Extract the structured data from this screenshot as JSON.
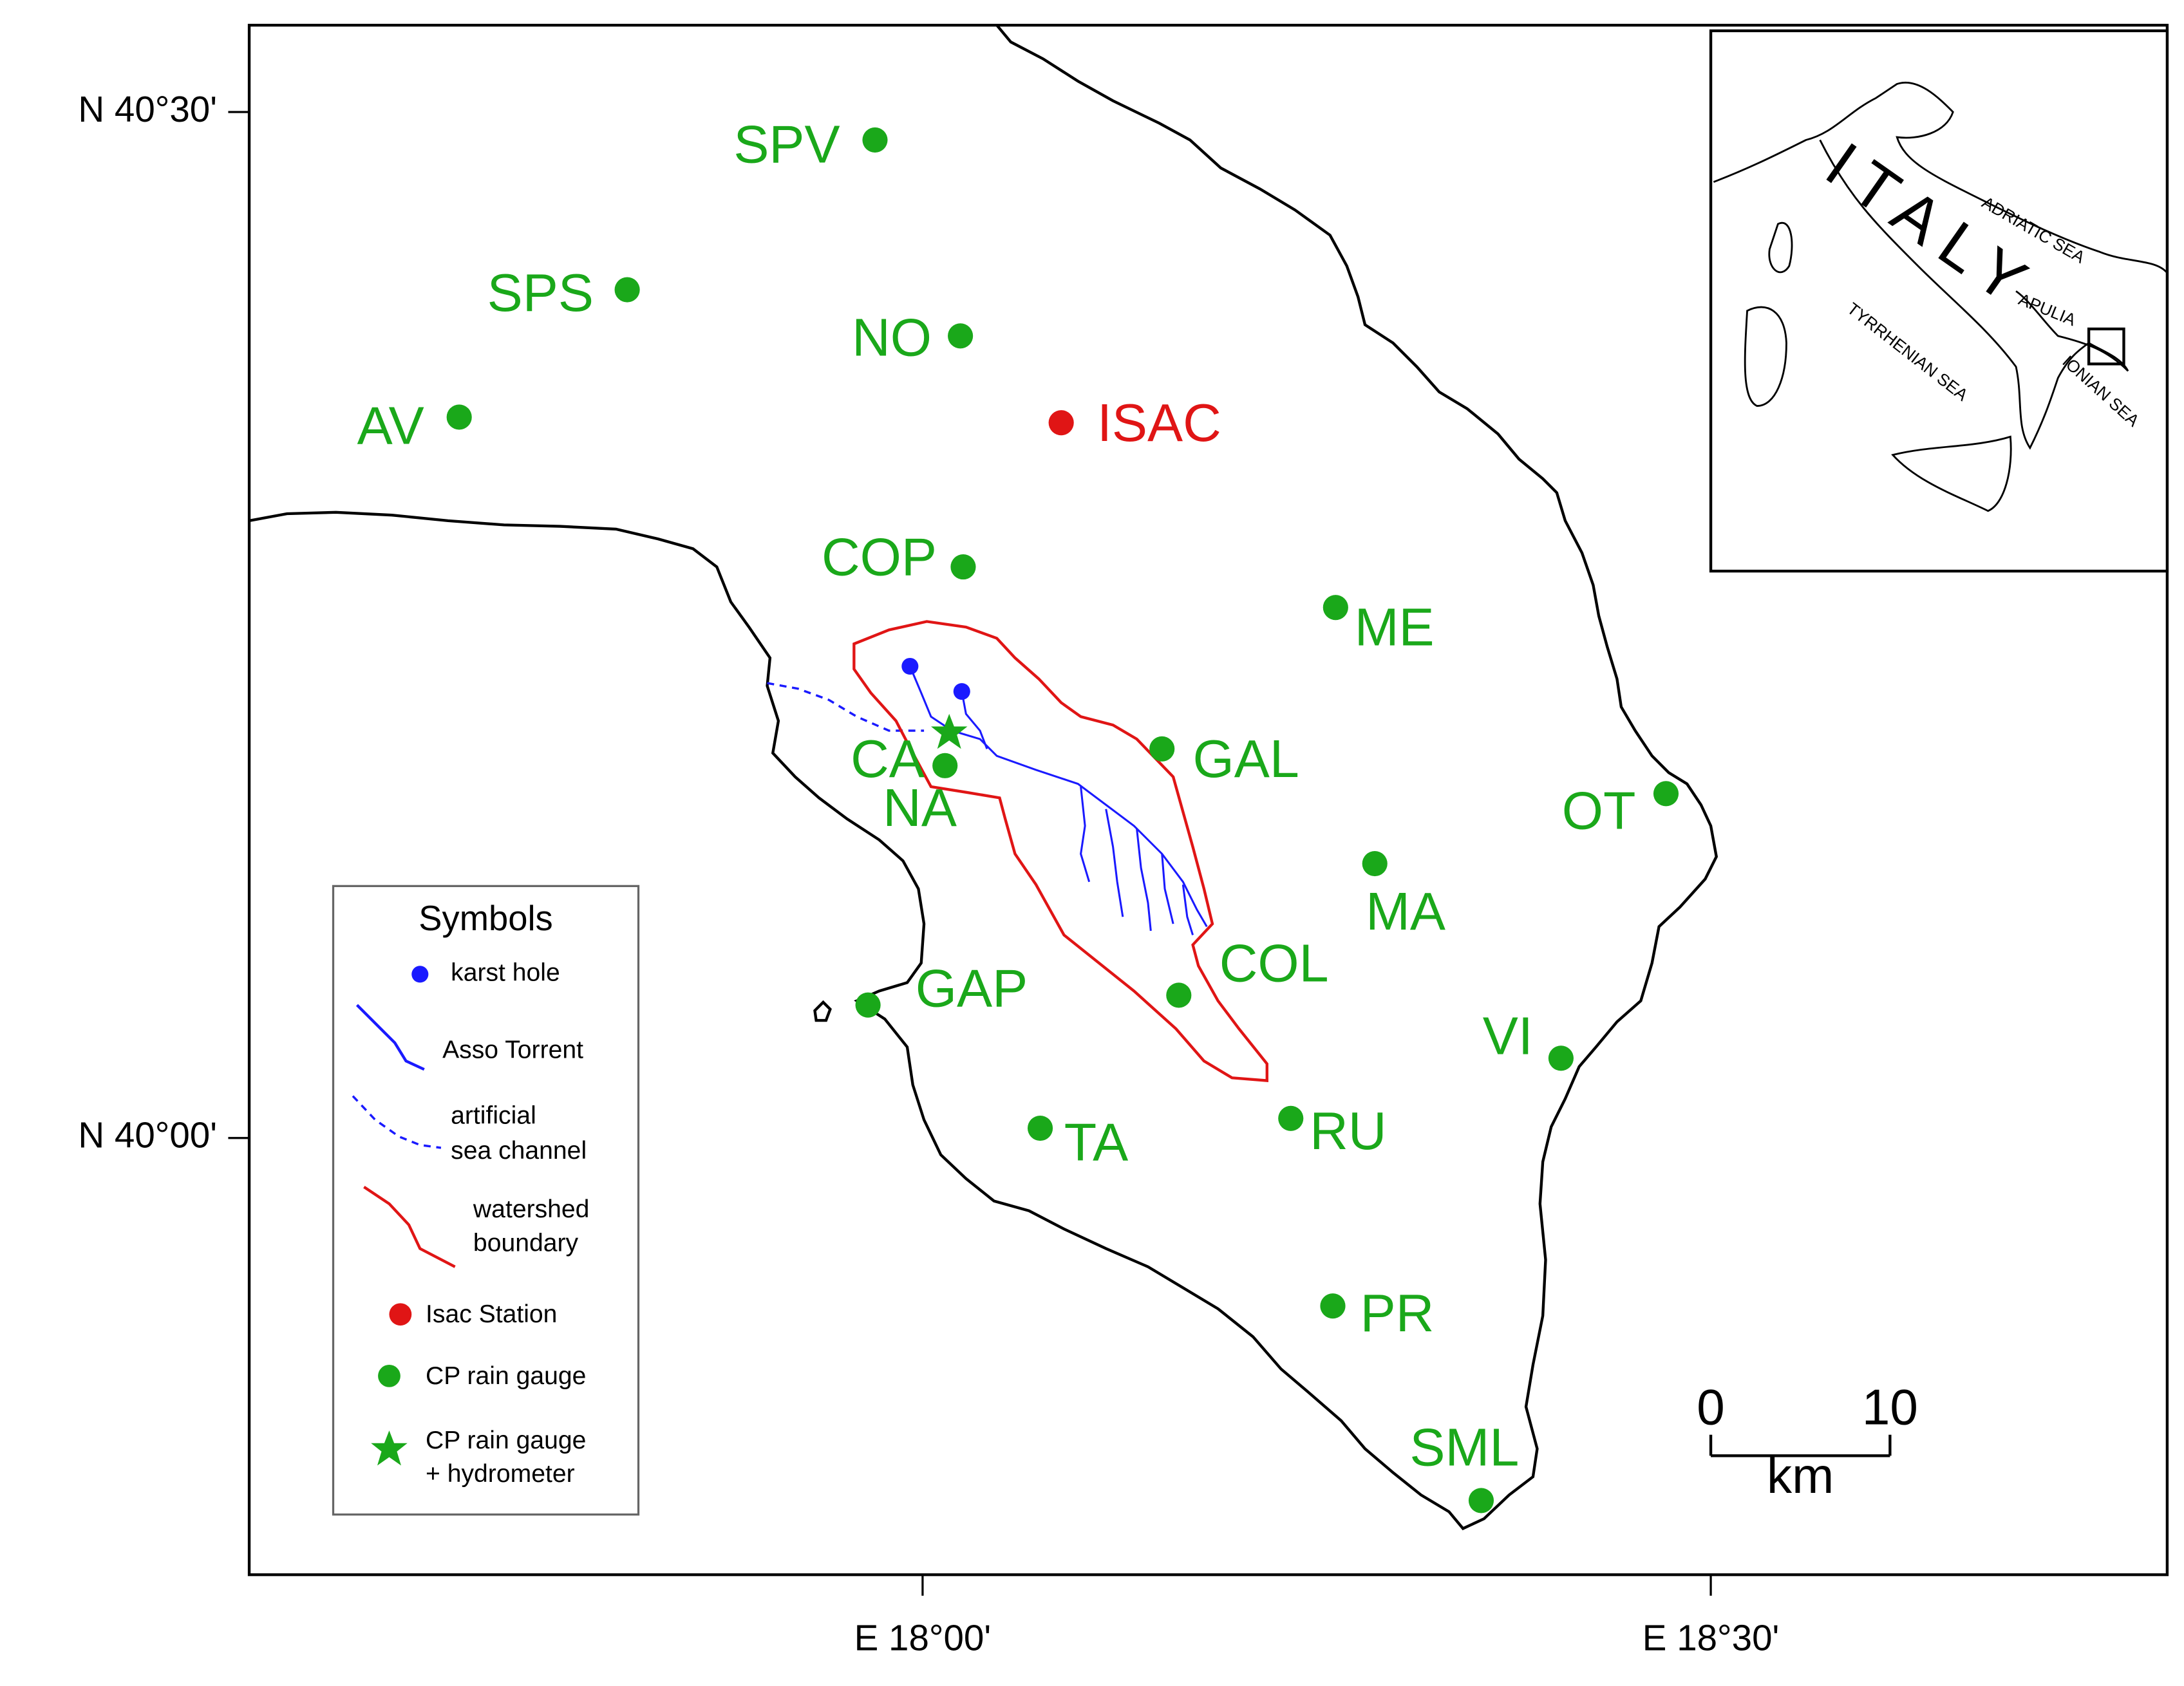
{
  "map": {
    "lat_ticks": [
      "N 40°30'",
      "N 40°00'"
    ],
    "lon_ticks": [
      "E 18°00'",
      "E 18°30'"
    ],
    "stations": [
      "SPV",
      "SPS",
      "NO",
      "AV",
      "COP",
      "ME",
      "GAL",
      "CA",
      "NA",
      "OT",
      "MA",
      "COL",
      "GAP",
      "VI",
      "TA",
      "RU",
      "PR",
      "SML"
    ],
    "isac_station": "ISAC",
    "legend": {
      "title": "Symbols",
      "items": [
        [
          "karst hole"
        ],
        [
          "Asso Torrent"
        ],
        [
          "artificial",
          "sea channel"
        ],
        [
          "watershed",
          "boundary"
        ],
        [
          "Isac Station"
        ],
        [
          "CP rain gauge"
        ],
        [
          "CP rain gauge",
          "+ hydrometer"
        ]
      ]
    },
    "inset": {
      "labels": [
        "ITALY",
        "ADRIATIC SEA",
        "APULIA",
        "TYRRHENIAN SEA",
        "IONIAN SEA"
      ]
    },
    "scale_bar": {
      "ticks": [
        "0",
        "10"
      ],
      "unit": "km"
    }
  }
}
